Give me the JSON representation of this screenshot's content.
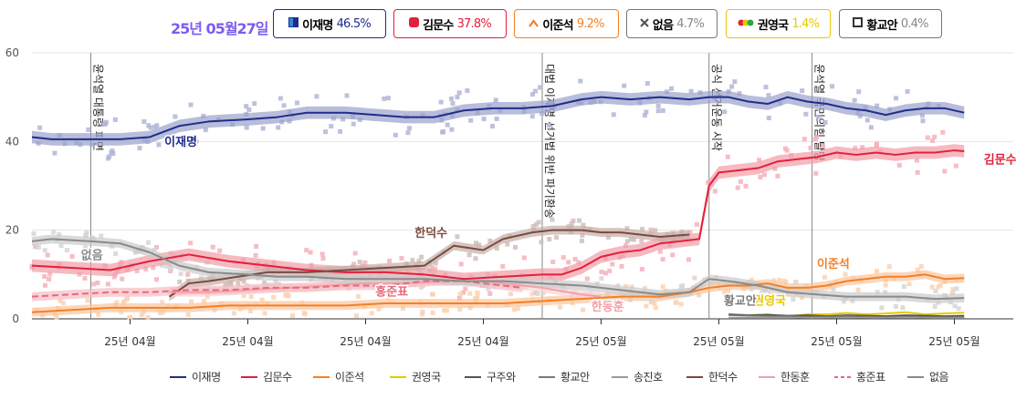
{
  "header": {
    "date": "25년 05월27일",
    "badges": [
      {
        "name": "이재명",
        "value": "46.5%",
        "color": "#1f2d8c",
        "icon": "filled-square-icon"
      },
      {
        "name": "김문수",
        "value": "37.8%",
        "color": "#e2203a",
        "icon": "filled-rounded-square-icon"
      },
      {
        "name": "이준석",
        "value": "9.2%",
        "color": "#f47f24",
        "icon": "caret-up-icon"
      },
      {
        "name": "없음",
        "value": "4.7%",
        "color": "#7a7a7a",
        "icon": "x-icon"
      },
      {
        "name": "권영국",
        "value": "1.4%",
        "color": "#e8c800",
        "icon": "tricolor-dots-icon"
      },
      {
        "name": "황교안",
        "value": "0.4%",
        "color": "#7a7a7a",
        "icon": "hollow-square-icon"
      }
    ]
  },
  "chart_data": {
    "type": "line",
    "ylim": [
      0,
      60
    ],
    "yticks": [
      "0",
      "20",
      "40",
      "60"
    ],
    "xlim": [
      0,
      100
    ],
    "xticks": [
      {
        "x": 10,
        "label": "25년 04월"
      },
      {
        "x": 22,
        "label": "25년 04월"
      },
      {
        "x": 34,
        "label": "25년 04월"
      },
      {
        "x": 46,
        "label": "25년 04월"
      },
      {
        "x": 58,
        "label": "25년 05월"
      },
      {
        "x": 70,
        "label": "25년 05월"
      },
      {
        "x": 82,
        "label": "25년 05월"
      },
      {
        "x": 94,
        "label": "25년 05월"
      }
    ],
    "events": [
      {
        "x": 6,
        "label": "윤석열 대통령 파면"
      },
      {
        "x": 52,
        "label": "대법 이재명 선거법 위반 파기환송"
      },
      {
        "x": 69,
        "label": "공식 선거운동 시작"
      },
      {
        "x": 79.5,
        "label": "윤석열 국민의힘 탈당"
      }
    ],
    "series": [
      {
        "name": "이재명",
        "color": "#1f2d8c",
        "x": [
          0,
          2,
          6,
          9,
          12,
          15,
          18,
          22,
          25,
          28,
          32,
          35,
          38,
          41,
          44,
          47,
          50,
          53,
          56,
          58,
          61,
          64,
          67,
          69,
          71,
          73,
          75,
          77,
          79,
          81,
          83,
          85,
          87,
          89,
          91,
          93,
          95
        ],
        "y": [
          41,
          40.5,
          40.5,
          40.5,
          41,
          43.5,
          44.5,
          45,
          45.5,
          46.5,
          46.5,
          46,
          45.5,
          45.5,
          47,
          47.5,
          47.5,
          48,
          49.5,
          50,
          49.5,
          50,
          49.5,
          50,
          50,
          49,
          48.5,
          50,
          49,
          48.5,
          47.5,
          47,
          46,
          47,
          47.5,
          47.5,
          46.5
        ]
      },
      {
        "name": "김문수",
        "color": "#e2203a",
        "x": [
          0,
          4,
          8,
          12,
          16,
          20,
          24,
          28,
          32,
          36,
          40,
          44,
          48,
          52,
          54,
          56,
          58,
          60,
          62,
          64,
          66,
          68,
          69,
          70,
          72,
          74,
          76,
          78,
          80,
          82,
          84,
          86,
          88,
          90,
          92,
          94,
          95
        ],
        "y": [
          12,
          11.5,
          11,
          13,
          14.5,
          13,
          12,
          11,
          10.5,
          10.5,
          10,
          9,
          9.5,
          10,
          10,
          11.5,
          14,
          15,
          15.5,
          17,
          17.5,
          18,
          30,
          33,
          33.5,
          34,
          35.5,
          36,
          36.5,
          37.5,
          37,
          37.5,
          37,
          37.5,
          37.5,
          38,
          37.8
        ]
      },
      {
        "name": "이준석",
        "color": "#f47f24",
        "x": [
          0,
          4,
          8,
          12,
          16,
          20,
          24,
          28,
          32,
          36,
          40,
          44,
          48,
          52,
          56,
          60,
          64,
          67,
          69,
          71,
          73,
          75,
          77,
          79,
          81,
          83,
          85,
          87,
          89,
          91,
          93,
          95
        ],
        "y": [
          1.5,
          2,
          2.5,
          2.5,
          2.5,
          3,
          3,
          3,
          3,
          3.5,
          3.5,
          3.5,
          3.5,
          4,
          4.5,
          5,
          5,
          6,
          7,
          7.5,
          7.5,
          8,
          7,
          7,
          7.5,
          8.5,
          9,
          9.5,
          9.5,
          10,
          9,
          9.2
        ]
      },
      {
        "name": "권영국",
        "color": "#e8c800",
        "x": [
          71,
          73,
          75,
          77,
          79,
          81,
          83,
          85,
          87,
          89,
          91,
          93,
          95
        ],
        "y": [
          1,
          0.8,
          1,
          0.5,
          1,
          1,
          1.3,
          1,
          1.2,
          1.5,
          1,
          1.2,
          1.4
        ]
      },
      {
        "name": "구주와",
        "color": "#555555",
        "x": [
          71,
          73,
          75,
          77,
          79,
          81,
          83,
          85,
          87,
          89,
          91,
          93,
          95
        ],
        "y": [
          1,
          0.8,
          0.9,
          0.7,
          0.8,
          0.6,
          0.8,
          0.7,
          0.6,
          0.8,
          0.7,
          0.6,
          0.7
        ]
      },
      {
        "name": "황교안",
        "color": "#7a7a7a",
        "x": [
          71,
          73,
          75,
          77,
          79,
          81,
          83,
          85,
          87,
          89,
          91,
          93,
          95
        ],
        "y": [
          0.8,
          0.7,
          0.6,
          0.6,
          0.5,
          0.5,
          0.6,
          0.5,
          0.4,
          0.5,
          0.4,
          0.4,
          0.4
        ]
      },
      {
        "name": "송진호",
        "color": "#9a9a9a",
        "x": [
          71,
          74,
          77,
          80,
          83,
          86,
          89,
          92,
          95
        ],
        "y": [
          0.3,
          0.3,
          0.3,
          0.2,
          0.3,
          0.2,
          0.3,
          0.2,
          0.2
        ]
      },
      {
        "name": "한덕수",
        "color": "#7b4a3e",
        "x": [
          14,
          16,
          18,
          21,
          24,
          28,
          32,
          36,
          40,
          43,
          46,
          48,
          51,
          53,
          56,
          58,
          60,
          64,
          67
        ],
        "y": [
          5,
          8,
          8.5,
          9.5,
          10.5,
          10.5,
          11,
          11.5,
          12,
          16.5,
          15.5,
          18,
          19.5,
          20,
          20,
          19.5,
          19.5,
          18.5,
          19
        ]
      },
      {
        "name": "한동훈",
        "color": "#f4a0a8",
        "x": [
          14,
          18,
          22,
          26,
          30,
          34,
          38,
          42,
          46,
          50,
          52,
          56,
          58
        ],
        "y": [
          6,
          6,
          6.5,
          7,
          7.5,
          8,
          8,
          8.5,
          8.5,
          7.5,
          7,
          5.5,
          5
        ]
      },
      {
        "name": "홍준표",
        "color": "#e56a7a",
        "dashed": true,
        "x": [
          0,
          4,
          8,
          12,
          16,
          20,
          24,
          28,
          32,
          36,
          40,
          44,
          48,
          50
        ],
        "y": [
          5,
          5.5,
          6,
          6,
          6.5,
          6.5,
          7,
          7,
          7.5,
          7.5,
          8.5,
          8.5,
          7.5,
          7
        ]
      },
      {
        "name": "없음",
        "color": "#8a8a8a",
        "x": [
          0,
          2,
          6,
          9,
          12,
          15,
          18,
          22,
          25,
          28,
          32,
          36,
          40,
          44,
          48,
          52,
          56,
          60,
          64,
          67,
          69,
          71,
          74,
          77,
          80,
          83,
          86,
          89,
          92,
          95
        ],
        "y": [
          17.5,
          18,
          17.5,
          17,
          15,
          12,
          10.5,
          10,
          9.5,
          9.5,
          9,
          9,
          9,
          8.5,
          8.5,
          8,
          7.5,
          6.5,
          5.5,
          6,
          9,
          8.5,
          7.5,
          6,
          5.5,
          5,
          5,
          5,
          4.5,
          4.7
        ]
      }
    ],
    "annotations": [
      {
        "text": "이재명",
        "series": "이재명",
        "x": 13.5,
        "y": 39
      },
      {
        "text": "김문수",
        "series": "김문수",
        "x": 97,
        "y": 35
      },
      {
        "text": "이준석",
        "series": "이준석",
        "x": 80,
        "y": 11.5
      },
      {
        "text": "권영국",
        "series": "권영국",
        "x": 73.5,
        "y": 3.2
      },
      {
        "text": "황교안",
        "series": "황교안",
        "x": 70.5,
        "y": 3.2
      },
      {
        "text": "한덕수",
        "series": "한덕수",
        "x": 39,
        "y": 18.5
      },
      {
        "text": "한동훈",
        "series": "한동훈",
        "x": 57,
        "y": 1.8
      },
      {
        "text": "홍준표",
        "series": "홍준표",
        "x": 35,
        "y": 5.2
      },
      {
        "text": "없음",
        "series": "없음",
        "x": 5,
        "y": 13.5
      }
    ]
  },
  "legend": [
    "이재명",
    "김문수",
    "이준석",
    "권영국",
    "구주와",
    "황교안",
    "송진호",
    "한덕수",
    "한동훈",
    "홍준표",
    "없음"
  ]
}
